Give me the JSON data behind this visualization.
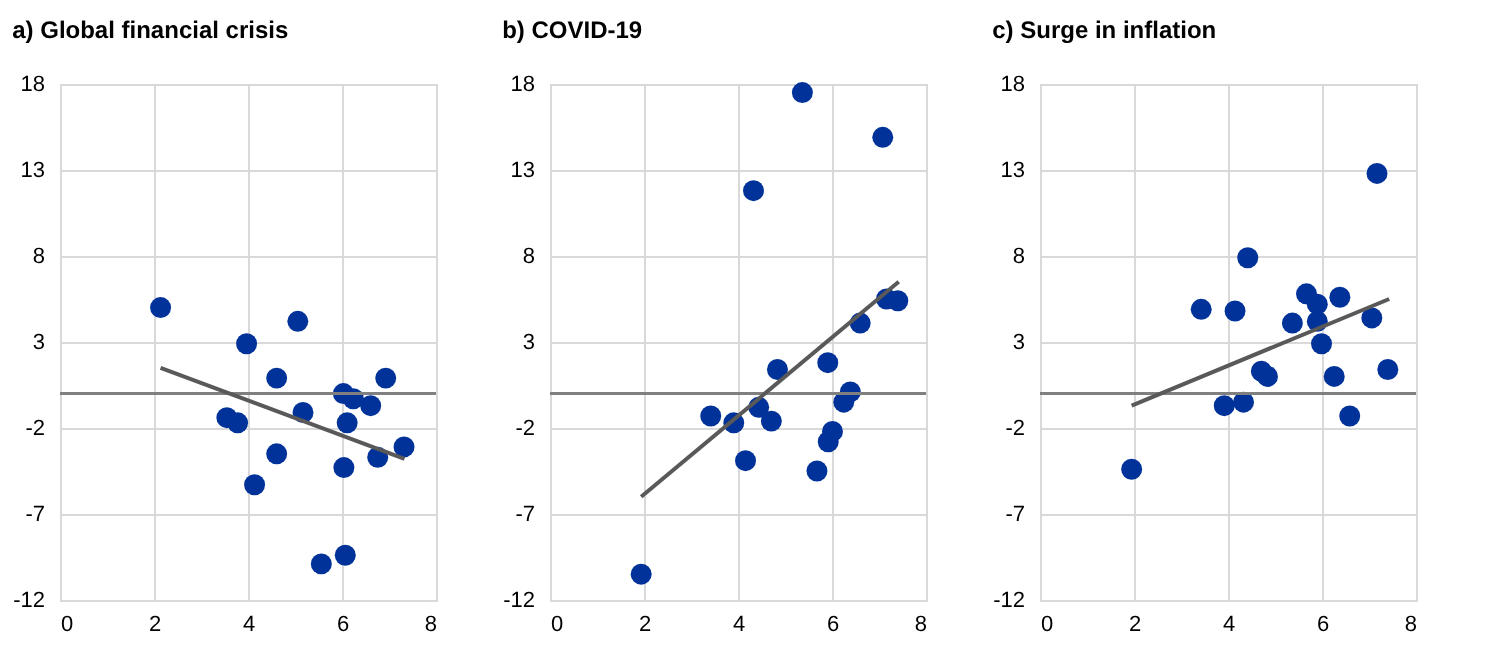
{
  "chart_data": [
    {
      "type": "scatter",
      "title": "a) Global financial crisis",
      "xlim": [
        0,
        8
      ],
      "xticks": [
        0,
        2,
        4,
        6,
        8
      ],
      "ylim": [
        -12,
        18
      ],
      "yticks": [
        -12,
        -7,
        -2,
        3,
        8,
        13,
        18
      ],
      "grid": true,
      "ref_lines": [
        {
          "axis": "y",
          "value": 0,
          "color": "#808080"
        }
      ],
      "series": [
        {
          "marker": "circle",
          "color": "#003299",
          "x": [
            2.14,
            3.97,
            5.06,
            4.61,
            6.93,
            6.03,
            6.24,
            6.61,
            5.17,
            3.55,
            3.78,
            6.11,
            7.32,
            4.61,
            6.76,
            6.04,
            4.14,
            6.07,
            5.56
          ],
          "values": [
            5.0,
            2.9,
            4.2,
            0.9,
            0.9,
            0.0,
            -0.3,
            -0.7,
            -1.1,
            -1.4,
            -1.7,
            -1.7,
            -3.1,
            -3.5,
            -3.7,
            -4.3,
            -5.3,
            -9.4,
            -9.9
          ]
        },
        {
          "type": "line",
          "color": "#595959",
          "x": [
            2.14,
            7.33
          ],
          "values": [
            1.5,
            -3.8
          ]
        }
      ]
    },
    {
      "type": "scatter",
      "title": "b) COVID-19",
      "xlim": [
        0,
        8
      ],
      "xticks": [
        0,
        2,
        4,
        6,
        8
      ],
      "ylim": [
        -12,
        18
      ],
      "yticks": [
        -12,
        -7,
        -2,
        3,
        8,
        13,
        18
      ],
      "grid": true,
      "ref_lines": [
        {
          "axis": "y",
          "value": 0,
          "color": "#808080"
        }
      ],
      "series": [
        {
          "marker": "circle",
          "color": "#003299",
          "x": [
            5.37,
            7.08,
            4.33,
            7.16,
            7.4,
            6.6,
            4.84,
            5.91,
            6.39,
            6.25,
            3.42,
            4.44,
            3.91,
            4.71,
            6.01,
            5.92,
            4.16,
            5.68,
            1.94
          ],
          "values": [
            17.5,
            14.9,
            11.8,
            5.5,
            5.4,
            4.1,
            1.4,
            1.8,
            0.1,
            -0.5,
            -1.3,
            -0.8,
            -1.7,
            -1.6,
            -2.2,
            -2.8,
            -3.9,
            -4.5,
            -10.5
          ]
        },
        {
          "type": "line",
          "color": "#595959",
          "x": [
            1.94,
            7.42
          ],
          "values": [
            -6.0,
            6.5
          ]
        }
      ]
    },
    {
      "type": "scatter",
      "title": "c) Surge in inflation",
      "xlim": [
        0,
        8
      ],
      "xticks": [
        0,
        2,
        4,
        6,
        8
      ],
      "ylim": [
        -12,
        18
      ],
      "yticks": [
        -12,
        -7,
        -2,
        3,
        8,
        13,
        18
      ],
      "grid": true,
      "ref_lines": [
        {
          "axis": "y",
          "value": 0,
          "color": "#808080"
        }
      ],
      "series": [
        {
          "marker": "circle",
          "color": "#003299",
          "x": [
            7.17,
            4.42,
            3.43,
            4.15,
            5.67,
            5.9,
            6.38,
            5.9,
            7.06,
            5.37,
            5.99,
            4.71,
            4.84,
            7.4,
            6.26,
            3.92,
            4.33,
            6.59,
            1.95
          ],
          "values": [
            12.8,
            7.9,
            4.9,
            4.8,
            5.8,
            5.2,
            5.6,
            4.2,
            4.4,
            4.1,
            2.9,
            1.3,
            1.0,
            1.4,
            1.0,
            -0.7,
            -0.5,
            -1.3,
            -4.4
          ]
        },
        {
          "type": "line",
          "color": "#595959",
          "x": [
            1.95,
            7.43
          ],
          "values": [
            -0.7,
            5.5
          ]
        }
      ]
    }
  ]
}
